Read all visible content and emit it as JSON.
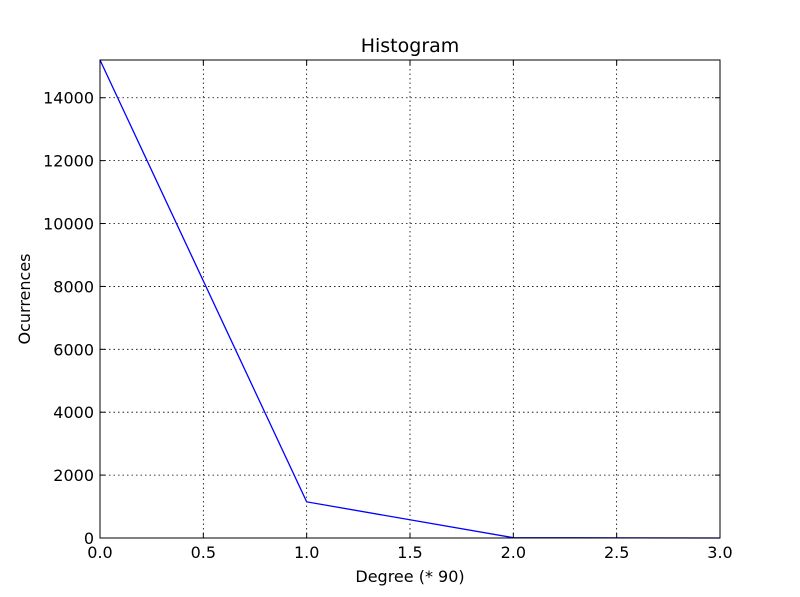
{
  "chart_data": {
    "type": "line",
    "title": "Histogram",
    "xlabel": "Degree (* 90)",
    "ylabel": "Ocurrences",
    "xlim": [
      0.0,
      3.0
    ],
    "ylim": [
      0,
      15200
    ],
    "x_ticks": [
      "0.0",
      "0.5",
      "1.0",
      "1.5",
      "2.0",
      "2.5",
      "3.0"
    ],
    "x_tick_values": [
      0.0,
      0.5,
      1.0,
      1.5,
      2.0,
      2.5,
      3.0
    ],
    "y_ticks": [
      "0",
      "2000",
      "4000",
      "6000",
      "8000",
      "10000",
      "12000",
      "14000"
    ],
    "y_tick_values": [
      0,
      2000,
      4000,
      6000,
      8000,
      10000,
      12000,
      14000
    ],
    "grid": true,
    "series": [
      {
        "color": "#0000ff",
        "x": [
          0,
          1,
          2,
          3
        ],
        "y": [
          15200,
          1150,
          10,
          0
        ]
      }
    ]
  }
}
